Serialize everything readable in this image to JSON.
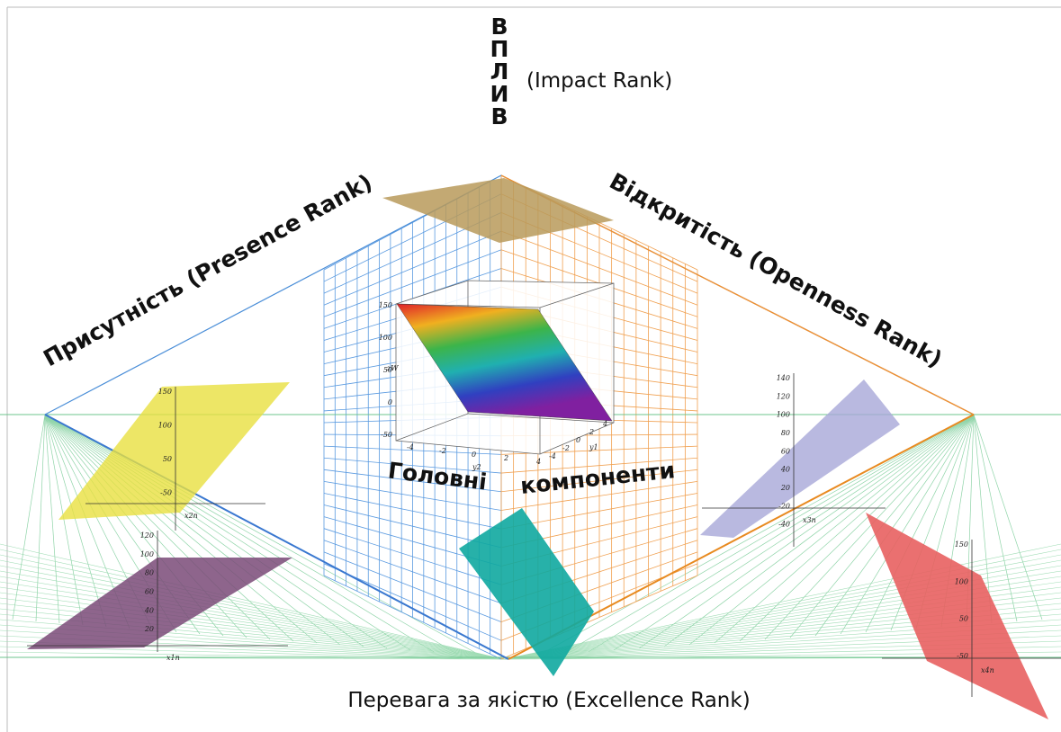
{
  "axes": {
    "impact": {
      "letters": [
        "В",
        "П",
        "Л",
        "И",
        "В"
      ],
      "label": "(Impact Rank)"
    },
    "openness": "Відкритість (Openness Rank)",
    "presence": "Присутність (Presence Rank)",
    "excellence": "Перевага за якістю (Excellence Rank)"
  },
  "center": {
    "line1": "Головні",
    "line2": "компоненти"
  },
  "inset": {
    "zticks": [
      150,
      100,
      50,
      0,
      -50
    ],
    "zlabel": "zW",
    "xticks": [
      -4,
      -2,
      0,
      2,
      4
    ],
    "xlabel": "y2",
    "yticks": [
      -4,
      -2,
      0,
      2,
      4
    ],
    "ylabel": "y1"
  },
  "mini_plots": [
    {
      "ticks": [
        150,
        100,
        50,
        -50
      ],
      "label": "x2n"
    },
    {
      "ticks": [
        120,
        100,
        80,
        60,
        40,
        20
      ],
      "label": "x1n"
    },
    {
      "ticks": [
        140,
        120,
        100,
        80,
        60,
        40,
        20,
        -20,
        -40
      ],
      "label": "x3n"
    },
    {
      "ticks": [
        150,
        100,
        50,
        -50
      ],
      "label": "x4n"
    }
  ]
}
